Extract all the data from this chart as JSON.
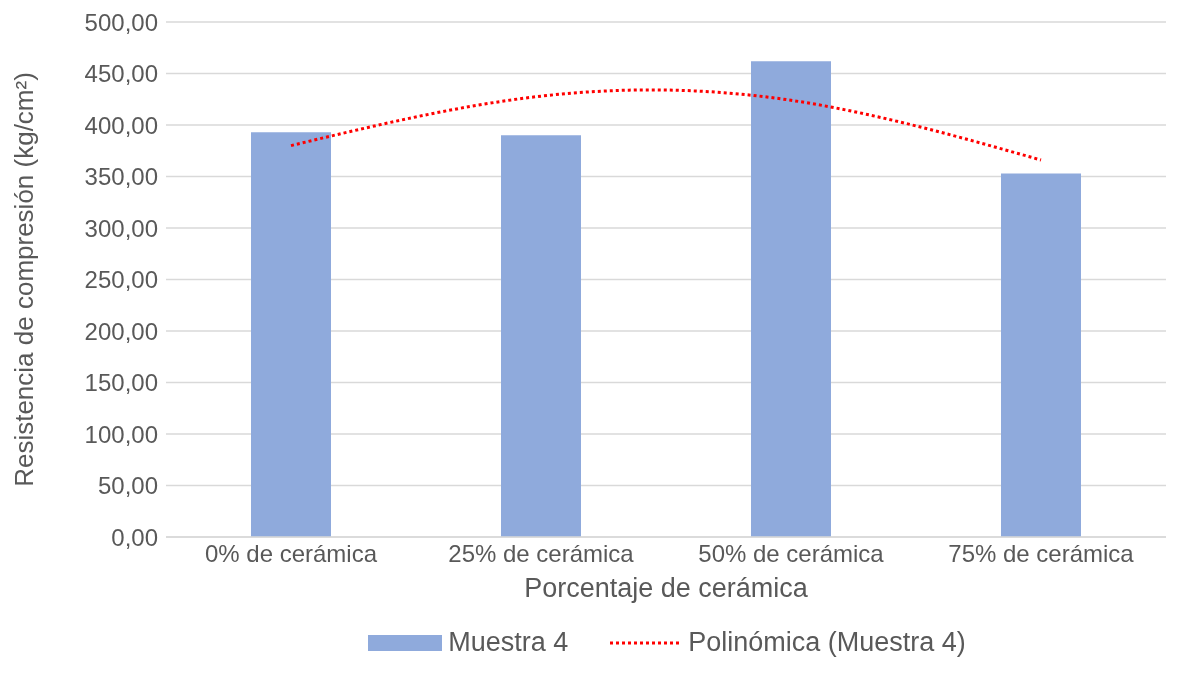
{
  "chart_data": {
    "type": "bar",
    "xlabel": "Porcentaje de cerámica",
    "ylabel": "Resistencia de compresión (kg/cm²)",
    "categories": [
      "0% de cerámica",
      "25% de cerámica",
      "50% de cerámica",
      "75% de cerámica"
    ],
    "series": [
      {
        "name": "Muestra 4",
        "color": "#8faadc",
        "values": [
          393,
          390,
          462,
          353
        ]
      },
      {
        "name": "Polinómica (Muestra 4)",
        "type": "line",
        "color": "#ff0000",
        "line_style": "dotted",
        "marker": "none",
        "x": [
          "0% de cerámica",
          "25% de cerámica",
          "50% de cerámica",
          "75% de cerámica"
        ],
        "values": [
          380,
          428,
          424,
          366
        ]
      }
    ],
    "ylim": [
      0,
      500
    ],
    "yticks": [
      {
        "value": 0,
        "label": "0,00"
      },
      {
        "value": 50,
        "label": "50,00"
      },
      {
        "value": 100,
        "label": "100,00"
      },
      {
        "value": 150,
        "label": "150,00"
      },
      {
        "value": 200,
        "label": "200,00"
      },
      {
        "value": 250,
        "label": "250,00"
      },
      {
        "value": 300,
        "label": "300,00"
      },
      {
        "value": 350,
        "label": "350,00"
      },
      {
        "value": 400,
        "label": "400,00"
      },
      {
        "value": 450,
        "label": "450,00"
      },
      {
        "value": 500,
        "label": "500,00"
      }
    ],
    "grid": "y",
    "legend": "bottom"
  }
}
